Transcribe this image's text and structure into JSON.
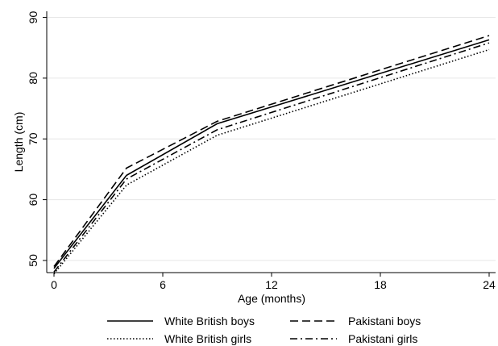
{
  "chart_data": {
    "type": "line",
    "title": "",
    "xlabel": "Age (months)",
    "ylabel": "Length (cm)",
    "xlim": [
      0,
      24
    ],
    "ylim": [
      48,
      91
    ],
    "xticks": [
      0,
      6,
      12,
      18,
      24
    ],
    "yticks": [
      50,
      60,
      70,
      80,
      90
    ],
    "grid": true,
    "legend_position": "bottom",
    "x": [
      0,
      4,
      9,
      24
    ],
    "series": [
      {
        "name": "White British boys",
        "dash": "solid",
        "values": [
          48.7,
          64.0,
          72.5,
          86.3
        ]
      },
      {
        "name": "Pakistani boys",
        "dash": "dashed",
        "values": [
          49.0,
          65.2,
          72.9,
          87.0
        ]
      },
      {
        "name": "White British girls",
        "dash": "dotted",
        "values": [
          47.8,
          62.4,
          70.6,
          84.7
        ]
      },
      {
        "name": "Pakistani girls",
        "dash": "dashdot",
        "values": [
          48.1,
          63.4,
          71.5,
          85.8
        ]
      }
    ]
  }
}
